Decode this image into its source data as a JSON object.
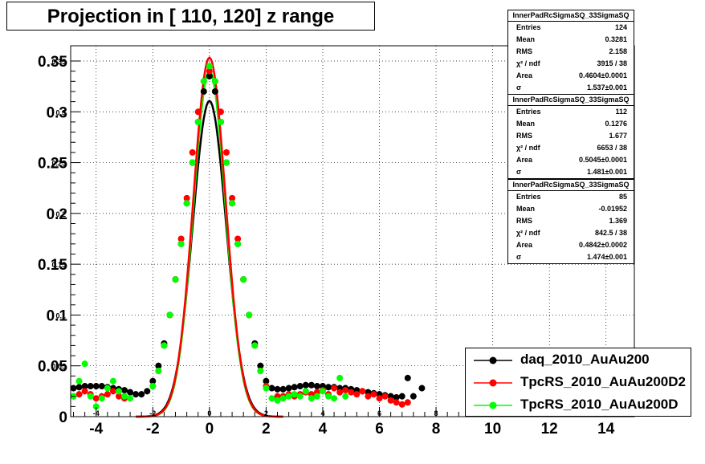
{
  "title": "Projection in [ 110, 120] z range",
  "chart_data": {
    "type": "scatter",
    "xlim": [
      -4.9,
      15.0
    ],
    "ylim": [
      0,
      0.365
    ],
    "grid": true,
    "x_tick_labels": [
      "-4",
      "-2",
      "0",
      "2",
      "4",
      "6",
      "8",
      "10",
      "12",
      "14"
    ],
    "x_tick_values": [
      -4,
      -2,
      0,
      2,
      4,
      6,
      8,
      10,
      12,
      14
    ],
    "x_inner_labels": [
      "-4",
      "-2",
      "0",
      "2",
      "4",
      "6",
      "8",
      "10",
      "12",
      "14"
    ],
    "y_tick_labels": [
      "0",
      "0.05",
      "0.1",
      "0.15",
      "0.2",
      "0.25",
      "0.3",
      "0.35"
    ],
    "y_tick_values": [
      0,
      0.05,
      0.1,
      0.15,
      0.2,
      0.25,
      0.3,
      0.35
    ],
    "y_inner_labels": [
      "0.05",
      "0.1",
      "0.15",
      "0.2",
      "0.25",
      "0.3",
      "0.35"
    ],
    "series": [
      {
        "name": "daq_2010_AuAu200",
        "color": "#000000",
        "fit": {
          "area": 0.4604,
          "sigma": 1.537,
          "mean": 0.0
        },
        "points": [
          [
            -4.8,
            0.028
          ],
          [
            -4.6,
            0.029
          ],
          [
            -4.4,
            0.03
          ],
          [
            -4.2,
            0.03
          ],
          [
            -4.0,
            0.03
          ],
          [
            -3.8,
            0.03
          ],
          [
            -3.6,
            0.029
          ],
          [
            -3.4,
            0.028
          ],
          [
            -3.2,
            0.027
          ],
          [
            -3.0,
            0.026
          ],
          [
            -2.8,
            0.024
          ],
          [
            -2.6,
            0.022
          ],
          [
            -2.4,
            0.022
          ],
          [
            -2.2,
            0.025
          ],
          [
            -2.0,
            0.035
          ],
          [
            -1.8,
            0.05
          ],
          [
            -1.6,
            0.072
          ],
          [
            -1.4,
            0.1
          ],
          [
            -1.2,
            0.135
          ],
          [
            -1.0,
            0.17
          ],
          [
            -0.8,
            0.21
          ],
          [
            -0.6,
            0.25
          ],
          [
            -0.4,
            0.29
          ],
          [
            -0.2,
            0.32
          ],
          [
            0.0,
            0.335
          ],
          [
            0.2,
            0.32
          ],
          [
            0.4,
            0.29
          ],
          [
            0.6,
            0.25
          ],
          [
            0.8,
            0.21
          ],
          [
            1.0,
            0.17
          ],
          [
            1.2,
            0.135
          ],
          [
            1.4,
            0.1
          ],
          [
            1.6,
            0.072
          ],
          [
            1.8,
            0.05
          ],
          [
            2.0,
            0.035
          ],
          [
            2.2,
            0.028
          ],
          [
            2.4,
            0.027
          ],
          [
            2.6,
            0.027
          ],
          [
            2.8,
            0.028
          ],
          [
            3.0,
            0.029
          ],
          [
            3.2,
            0.03
          ],
          [
            3.4,
            0.031
          ],
          [
            3.6,
            0.031
          ],
          [
            3.8,
            0.03
          ],
          [
            4.0,
            0.03
          ],
          [
            4.2,
            0.029
          ],
          [
            4.4,
            0.029
          ],
          [
            4.6,
            0.028
          ],
          [
            4.8,
            0.028
          ],
          [
            5.0,
            0.027
          ],
          [
            5.2,
            0.026
          ],
          [
            5.4,
            0.025
          ],
          [
            5.6,
            0.024
          ],
          [
            5.8,
            0.023
          ],
          [
            6.0,
            0.022
          ],
          [
            6.2,
            0.021
          ],
          [
            6.4,
            0.02
          ],
          [
            6.6,
            0.019
          ],
          [
            6.8,
            0.02
          ],
          [
            7.0,
            0.038
          ],
          [
            7.2,
            0.02
          ],
          [
            7.5,
            0.028
          ]
        ]
      },
      {
        "name": "TpcRS_2010_AuAu200D2",
        "color": "#ff0000",
        "fit": {
          "area": 0.5045,
          "sigma": 1.481,
          "mean": 0.0
        },
        "points": [
          [
            -4.8,
            0.02
          ],
          [
            -4.6,
            0.022
          ],
          [
            -4.4,
            0.025
          ],
          [
            -4.2,
            0.022
          ],
          [
            -4.0,
            0.018
          ],
          [
            -3.8,
            0.02
          ],
          [
            -3.6,
            0.022
          ],
          [
            -3.4,
            0.025
          ],
          [
            -3.2,
            0.02
          ],
          [
            -3.0,
            0.018
          ],
          [
            -2.0,
            0.03
          ],
          [
            -1.8,
            0.045
          ],
          [
            -1.6,
            0.07
          ],
          [
            -1.4,
            0.1
          ],
          [
            -1.2,
            0.135
          ],
          [
            -1.0,
            0.175
          ],
          [
            -0.8,
            0.215
          ],
          [
            -0.6,
            0.26
          ],
          [
            -0.4,
            0.3
          ],
          [
            -0.2,
            0.33
          ],
          [
            0.0,
            0.34
          ],
          [
            0.2,
            0.33
          ],
          [
            0.4,
            0.3
          ],
          [
            0.6,
            0.26
          ],
          [
            0.8,
            0.215
          ],
          [
            1.0,
            0.175
          ],
          [
            1.2,
            0.135
          ],
          [
            1.4,
            0.1
          ],
          [
            1.6,
            0.07
          ],
          [
            1.8,
            0.045
          ],
          [
            2.0,
            0.03
          ],
          [
            2.4,
            0.02
          ],
          [
            2.6,
            0.02
          ],
          [
            2.8,
            0.022
          ],
          [
            3.0,
            0.02
          ],
          [
            3.2,
            0.022
          ],
          [
            3.4,
            0.024
          ],
          [
            3.6,
            0.022
          ],
          [
            3.8,
            0.024
          ],
          [
            4.0,
            0.026
          ],
          [
            4.2,
            0.022
          ],
          [
            4.4,
            0.028
          ],
          [
            4.6,
            0.024
          ],
          [
            4.8,
            0.026
          ],
          [
            5.0,
            0.024
          ],
          [
            5.2,
            0.022
          ],
          [
            5.4,
            0.025
          ],
          [
            5.6,
            0.02
          ],
          [
            5.8,
            0.022
          ],
          [
            6.0,
            0.018
          ],
          [
            6.2,
            0.02
          ],
          [
            6.4,
            0.016
          ],
          [
            6.6,
            0.014
          ],
          [
            6.8,
            0.012
          ],
          [
            7.0,
            0.014
          ]
        ]
      },
      {
        "name": "TpcRS_2010_AuAu200D",
        "color": "#00ff00",
        "fit": {
          "area": 0.4842,
          "sigma": 1.474,
          "mean": 0.0
        },
        "points": [
          [
            -4.8,
            0.02
          ],
          [
            -4.6,
            0.035
          ],
          [
            -4.4,
            0.052
          ],
          [
            -4.2,
            0.02
          ],
          [
            -4.0,
            0.01
          ],
          [
            -3.8,
            0.018
          ],
          [
            -3.6,
            0.028
          ],
          [
            -3.4,
            0.035
          ],
          [
            -3.2,
            0.025
          ],
          [
            -3.0,
            0.02
          ],
          [
            -2.8,
            0.018
          ],
          [
            -2.0,
            0.03
          ],
          [
            -1.8,
            0.045
          ],
          [
            -1.6,
            0.07
          ],
          [
            -1.4,
            0.1
          ],
          [
            -1.2,
            0.135
          ],
          [
            -1.0,
            0.17
          ],
          [
            -0.8,
            0.21
          ],
          [
            -0.6,
            0.25
          ],
          [
            -0.4,
            0.29
          ],
          [
            -0.2,
            0.33
          ],
          [
            0.0,
            0.345
          ],
          [
            0.2,
            0.33
          ],
          [
            0.4,
            0.29
          ],
          [
            0.6,
            0.25
          ],
          [
            0.8,
            0.21
          ],
          [
            1.0,
            0.17
          ],
          [
            1.2,
            0.135
          ],
          [
            1.4,
            0.1
          ],
          [
            1.6,
            0.07
          ],
          [
            1.8,
            0.045
          ],
          [
            2.0,
            0.028
          ],
          [
            2.2,
            0.018
          ],
          [
            2.4,
            0.016
          ],
          [
            2.6,
            0.018
          ],
          [
            2.8,
            0.02
          ],
          [
            3.0,
            0.022
          ],
          [
            3.2,
            0.02
          ],
          [
            3.4,
            0.025
          ],
          [
            3.6,
            0.018
          ],
          [
            3.8,
            0.02
          ],
          [
            4.0,
            0.025
          ],
          [
            4.2,
            0.02
          ],
          [
            4.4,
            0.018
          ],
          [
            4.6,
            0.038
          ],
          [
            4.8,
            0.02
          ]
        ]
      }
    ],
    "stats": [
      {
        "name": "InnerPadRcSigmaSQ_33SigmaSQ",
        "rows": [
          [
            "Entries",
            "124"
          ],
          [
            "Mean",
            "0.3281"
          ],
          [
            "RMS",
            "2.158"
          ],
          [
            "χ² / ndf",
            "3915 / 38"
          ],
          [
            "Area",
            "0.4604±0.0001"
          ],
          [
            "σ",
            "1.537±0.001"
          ]
        ]
      },
      {
        "name": "InnerPadRcSigmaSQ_33SigmaSQ",
        "rows": [
          [
            "Entries",
            "112"
          ],
          [
            "Mean",
            "0.1276"
          ],
          [
            "RMS",
            "1.677"
          ],
          [
            "χ² / ndf",
            "6653 / 38"
          ],
          [
            "Area",
            "0.5045±0.0001"
          ],
          [
            "σ",
            "1.481±0.001"
          ]
        ]
      },
      {
        "name": "InnerPadRcSigmaSQ_33SigmaSQ",
        "rows": [
          [
            "Entries",
            "85"
          ],
          [
            "Mean",
            "-0.01952"
          ],
          [
            "RMS",
            "1.369"
          ],
          [
            "χ² / ndf",
            "842.5 / 38"
          ],
          [
            "Area",
            "0.4842±0.0002"
          ],
          [
            "σ",
            "1.474±0.001"
          ]
        ]
      }
    ],
    "legend": [
      "daq_2010_AuAu200",
      "TpcRS_2010_AuAu200D2",
      "TpcRS_2010_AuAu200D"
    ]
  }
}
